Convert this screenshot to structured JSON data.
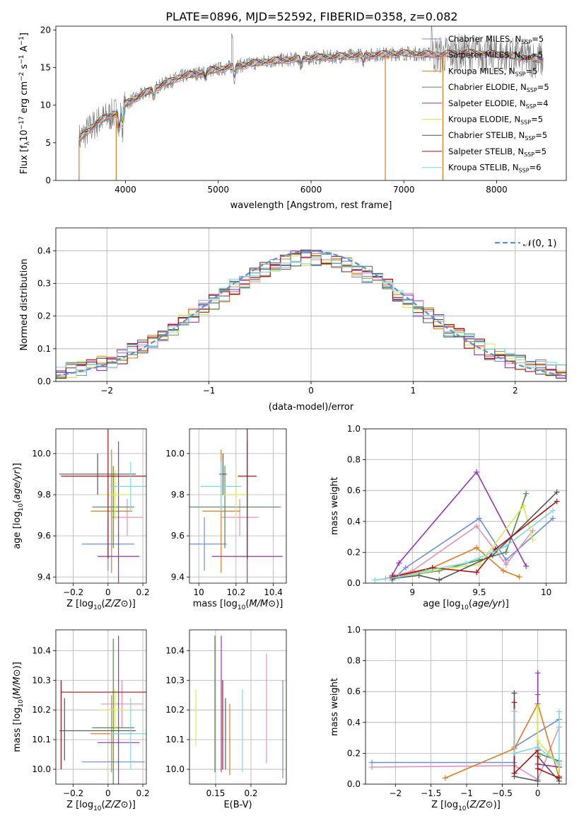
{
  "figure_title": "PLATE=0896, MJD=52592, FIBERID=0358, z=0.082",
  "colors": {
    "Chabrier MILES": "#6a8fd8",
    "Salpeter MILES": "#e98fb8",
    "Kroupa MILES": "#e07b20",
    "Chabrier ELODIE": "#4f8a4f",
    "Salpeter ELODIE": "#9933b3",
    "Kroupa ELODIE": "#d8ea50",
    "Chabrier STELIB": "#555555",
    "Salpeter STELIB": "#aa1111",
    "Kroupa STELIB": "#7fd8e0",
    "gaussian": "#5b8fd9",
    "data_spectrum": "#777777"
  },
  "chart_data": [
    {
      "id": "spectrum",
      "type": "line",
      "title": "PLATE=0896, MJD=52592, FIBERID=0358, z=0.082",
      "xlabel": "wavelength [Angstrom, rest frame]",
      "ylabel": "Flux [f_λ10^-17 erg cm^-2 s^-1 A^-1]",
      "xlim": [
        3250,
        8750
      ],
      "ylim": [
        0,
        20.5
      ],
      "xticks": [
        4000,
        5000,
        6000,
        7000,
        8000
      ],
      "yticks": [
        0,
        5,
        10,
        15,
        20
      ],
      "grid": false,
      "legend_position": "top-right",
      "legend": [
        {
          "label": "Chabrier MILES, N",
          "sub": "SSP",
          "tail": "=5"
        },
        {
          "label": "Salpeter MILES, N",
          "sub": "SSP",
          "tail": "=5"
        },
        {
          "label": "Kroupa MILES, N",
          "sub": "SSP",
          "tail": "=5"
        },
        {
          "label": "Chabrier ELODIE, N",
          "sub": "SSP",
          "tail": "=5"
        },
        {
          "label": "Salpeter ELODIE, N",
          "sub": "SSP",
          "tail": "=4"
        },
        {
          "label": "Kroupa ELODIE, N",
          "sub": "SSP",
          "tail": "=5"
        },
        {
          "label": "Chabrier STELIB, N",
          "sub": "SSP",
          "tail": "=5"
        },
        {
          "label": "Salpeter STELIB, N",
          "sub": "SSP",
          "tail": "=5"
        },
        {
          "label": "Kroupa STELIB, N",
          "sub": "SSP",
          "tail": "=6"
        }
      ],
      "continuum": {
        "x": [
          3500,
          3700,
          3900,
          4000,
          4300,
          4600,
          5000,
          5500,
          6000,
          6500,
          7000,
          7400,
          7600,
          8000,
          8500
        ],
        "y": [
          5.5,
          7.8,
          9.0,
          10.2,
          12.2,
          13.8,
          14.8,
          15.8,
          16.3,
          16.6,
          16.9,
          16.7,
          17.0,
          16.8,
          16.0
        ]
      },
      "features": [
        {
          "x": 3934,
          "depth": 3.0
        },
        {
          "x": 3969,
          "depth": 2.8
        },
        {
          "x": 4305,
          "depth": 1.5
        },
        {
          "x": 4861,
          "depth": 1.0
        },
        {
          "x": 5175,
          "depth": 1.5
        },
        {
          "x": 5893,
          "depth": 1.2
        },
        {
          "x": 6563,
          "depth": 0.8
        }
      ],
      "drops": [
        {
          "x": 3500,
          "series": "Kroupa MILES"
        },
        {
          "x": 3900,
          "series": "Kroupa MILES"
        },
        {
          "x": 6800,
          "series": "Kroupa MILES"
        },
        {
          "x": 7420,
          "series": "Kroupa MILES"
        }
      ]
    },
    {
      "id": "residuals",
      "type": "line",
      "xlabel": "(data-model)/error",
      "ylabel": "Normed distribution",
      "xlim": [
        -2.5,
        2.5
      ],
      "ylim": [
        0,
        0.47
      ],
      "xticks": [
        -2,
        -1,
        0,
        1,
        2
      ],
      "yticks": [
        0.0,
        0.1,
        0.2,
        0.3,
        0.4
      ],
      "grid": true,
      "bin_width": 0.1,
      "gaussian_label": "𝒩(0, 1)",
      "legend_position": "top-right"
    },
    {
      "id": "age_vs_Z",
      "type": "scatter",
      "xlabel": "Z [log10(Z/Z⊙)]",
      "ylabel": "age [log10(age/yr)]",
      "xlim": [
        -0.3,
        0.22
      ],
      "ylim": [
        9.37,
        10.12
      ],
      "xticks": [
        -0.2,
        0.0,
        0.2
      ],
      "yticks": [
        9.4,
        9.6,
        9.8,
        10.0
      ],
      "grid": true,
      "points": [
        {
          "series": "Chabrier MILES",
          "x": 0.0,
          "xerr": 0.15,
          "y": 9.56,
          "yerr": 0.13
        },
        {
          "series": "Salpeter MILES",
          "x": 0.11,
          "xerr": 0.09,
          "y": 9.69,
          "yerr": 0.09
        },
        {
          "series": "Kroupa MILES",
          "x": 0.02,
          "xerr": 0.12,
          "y": 9.72,
          "yerr": 0.3
        },
        {
          "series": "Chabrier ELODIE",
          "x": 0.03,
          "xerr": 0.12,
          "y": 9.74,
          "yerr": 0.2
        },
        {
          "series": "Salpeter ELODIE",
          "x": 0.06,
          "xerr": 0.12,
          "y": 9.5,
          "yerr": 0.56
        },
        {
          "series": "Kroupa ELODIE",
          "x": 0.04,
          "xerr": 0.08,
          "y": 9.8,
          "yerr": 0.12
        },
        {
          "series": "Chabrier STELIB",
          "x": -0.06,
          "xerr": 0.22,
          "y": 9.9,
          "yerr": 0.1
        },
        {
          "series": "Salpeter STELIB",
          "x": 0.0,
          "xerr": 0.27,
          "y": 9.89,
          "yerr": 0.4
        },
        {
          "series": "Kroupa STELIB",
          "x": 0.13,
          "xerr": 0.12,
          "y": 9.84,
          "yerr": 0.12
        }
      ]
    },
    {
      "id": "age_vs_mass",
      "type": "scatter",
      "xlabel": "mass [log10(M/M⊙)]",
      "ylabel": "",
      "xlim": [
        9.95,
        10.47
      ],
      "ylim": [
        9.37,
        10.12
      ],
      "xticks": [
        10.0,
        10.2,
        10.4
      ],
      "yticks": [
        9.4,
        9.6,
        9.8,
        10.0
      ],
      "grid": true,
      "points": [
        {
          "series": "Chabrier MILES",
          "x": 10.03,
          "xerr": 0.12,
          "y": 9.56,
          "yerr": 0.13
        },
        {
          "series": "Salpeter MILES",
          "x": 10.22,
          "xerr": 0.1,
          "y": 9.69,
          "yerr": 0.09
        },
        {
          "series": "Kroupa MILES",
          "x": 10.12,
          "xerr": 0.1,
          "y": 9.72,
          "yerr": 0.3
        },
        {
          "series": "Chabrier ELODIE",
          "x": 10.14,
          "xerr": 0.3,
          "y": 9.74,
          "yerr": 0.2
        },
        {
          "series": "Salpeter ELODIE",
          "x": 10.26,
          "xerr": 0.19,
          "y": 9.5,
          "yerr": 0.56
        },
        {
          "series": "Kroupa ELODIE",
          "x": 10.2,
          "xerr": 0.07,
          "y": 9.8,
          "yerr": 0.12
        },
        {
          "series": "Chabrier STELIB",
          "x": 10.13,
          "xerr": 0.02,
          "y": 9.9,
          "yerr": 0.1
        },
        {
          "series": "Salpeter STELIB",
          "x": 10.26,
          "xerr": 0.05,
          "y": 9.89,
          "yerr": 0.4
        },
        {
          "series": "Kroupa STELIB",
          "x": 10.12,
          "xerr": 0.11,
          "y": 9.84,
          "yerr": 0.12
        }
      ]
    },
    {
      "id": "mass_weight_vs_age",
      "type": "line",
      "xlabel": "age [log10(age/yr)]",
      "ylabel": "mass weight",
      "xlim": [
        8.65,
        10.15
      ],
      "ylim": [
        0,
        1.0
      ],
      "xticks": [
        9.0,
        9.5,
        10.0
      ],
      "yticks": [
        0.0,
        0.2,
        0.4,
        0.6,
        0.8,
        1.0
      ],
      "grid": true,
      "series": [
        {
          "name": "Chabrier MILES",
          "x": [
            8.85,
            8.95,
            9.5,
            9.7,
            10.05
          ],
          "y": [
            0.02,
            0.1,
            0.42,
            0.15,
            0.42
          ]
        },
        {
          "name": "Salpeter MILES",
          "x": [
            8.8,
            9.0,
            9.48,
            9.7,
            9.9
          ],
          "y": [
            0.03,
            0.08,
            0.37,
            0.12,
            0.34
          ]
        },
        {
          "name": "Kroupa MILES",
          "x": [
            8.85,
            9.15,
            9.48,
            9.68,
            9.8
          ],
          "y": [
            0.03,
            0.1,
            0.23,
            0.08,
            0.04
          ]
        },
        {
          "name": "Chabrier ELODIE",
          "x": [
            8.87,
            9.2,
            9.5,
            9.7,
            9.85
          ],
          "y": [
            0.04,
            0.08,
            0.15,
            0.2,
            0.58
          ]
        },
        {
          "name": "Salpeter ELODIE",
          "x": [
            8.85,
            8.9,
            9.48,
            9.85
          ],
          "y": [
            0.05,
            0.13,
            0.72,
            0.11
          ]
        },
        {
          "name": "Kroupa ELODIE",
          "x": [
            8.88,
            9.3,
            9.5,
            9.83,
            9.9
          ],
          "y": [
            0.04,
            0.1,
            0.12,
            0.5,
            0.28
          ]
        },
        {
          "name": "Chabrier STELIB",
          "x": [
            8.85,
            9.05,
            9.2,
            9.6,
            10.08
          ],
          "y": [
            0.03,
            0.05,
            0.02,
            0.18,
            0.59
          ]
        },
        {
          "name": "Salpeter STELIB",
          "x": [
            8.85,
            9.15,
            9.48,
            9.62,
            10.08
          ],
          "y": [
            0.04,
            0.1,
            0.07,
            0.22,
            0.53
          ]
        },
        {
          "name": "Kroupa STELIB",
          "x": [
            8.72,
            8.9,
            9.1,
            9.4,
            9.6,
            9.7,
            10.05
          ],
          "y": [
            0.02,
            0.04,
            0.08,
            0.13,
            0.2,
            0.24,
            0.47
          ]
        }
      ]
    },
    {
      "id": "mass_vs_Z",
      "type": "scatter",
      "xlabel": "Z [log10(Z/Z⊙)]",
      "ylabel": "mass [log10(M/M⊙)]",
      "xlim": [
        -0.3,
        0.22
      ],
      "ylim": [
        9.95,
        10.47
      ],
      "xticks": [
        -0.2,
        0.0,
        0.2
      ],
      "yticks": [
        10.0,
        10.1,
        10.2,
        10.3,
        10.4
      ],
      "grid": true,
      "points": [
        {
          "series": "Chabrier MILES",
          "x": 0.03,
          "xerr": 0.18,
          "y": 10.025,
          "yerr": 0.0
        },
        {
          "series": "Salpeter MILES",
          "x": 0.08,
          "xerr": 0.12,
          "y": 10.22,
          "yerr": 0.08
        },
        {
          "series": "Kroupa MILES",
          "x": 0.02,
          "xerr": 0.12,
          "y": 10.12,
          "yerr": 0.13
        },
        {
          "series": "Chabrier ELODIE",
          "x": 0.03,
          "xerr": 0.12,
          "y": 10.14,
          "yerr": 0.3
        },
        {
          "series": "Salpeter ELODIE",
          "x": 0.06,
          "xerr": 0.12,
          "y": 10.09,
          "yerr": 0.36
        },
        {
          "series": "Kroupa ELODIE",
          "x": 0.04,
          "xerr": 0.09,
          "y": 10.2,
          "yerr": 0.07
        },
        {
          "series": "Chabrier STELIB",
          "x": -0.06,
          "xerr": 0.22,
          "y": 10.13,
          "yerr": 0.0
        },
        {
          "series": "Salpeter STELIB",
          "x": -0.02,
          "xerr": 0.25,
          "y": 10.26,
          "yerr": 0.0
        },
        {
          "series": "Kroupa STELIB",
          "x": 0.13,
          "xerr": 0.12,
          "y": 10.12,
          "yerr": 0.12
        }
      ],
      "vbars": [
        {
          "series": "Salpeter STELIB",
          "x": -0.27,
          "y0": 10.0,
          "y1": 10.3
        },
        {
          "series": "Chabrier STELIB",
          "x": -0.25,
          "y0": 10.03,
          "y1": 10.24
        }
      ]
    },
    {
      "id": "mass_vs_ebv",
      "type": "scatter",
      "xlabel": "E(B-V)",
      "ylabel": "",
      "xlim": [
        0.113,
        0.25
      ],
      "ylim": [
        9.95,
        10.47
      ],
      "xticks": [
        0.15,
        0.2
      ],
      "yticks": [
        10.0,
        10.1,
        10.2,
        10.3,
        10.4
      ],
      "grid": true,
      "points": [
        {
          "series": "Kroupa ELODIE",
          "x": 0.122,
          "y0": 10.08,
          "y1": 10.27
        },
        {
          "series": "Chabrier ELODIE",
          "x": 0.149,
          "y0": 9.99,
          "y1": 10.45
        },
        {
          "series": "Salpeter ELODIE",
          "x": 0.158,
          "y0": 9.99,
          "y1": 10.45
        },
        {
          "series": "Salpeter STELIB",
          "x": 0.16,
          "y0": 10.0,
          "y1": 10.3
        },
        {
          "series": "Chabrier STELIB",
          "x": 0.164,
          "y0": 10.0,
          "y1": 10.24
        },
        {
          "series": "Kroupa MILES",
          "x": 0.17,
          "y0": 9.98,
          "y1": 10.22
        },
        {
          "series": "Kroupa STELIB",
          "x": 0.188,
          "y0": 9.99,
          "y1": 10.27
        },
        {
          "series": "Salpeter MILES",
          "x": 0.222,
          "y0": 10.02,
          "y1": 10.39
        },
        {
          "series": "Chabrier MILES",
          "x": 0.245,
          "y0": 9.97,
          "y1": 10.3
        }
      ]
    },
    {
      "id": "mass_weight_vs_Z",
      "type": "line",
      "xlabel": "Z [log10(Z/Z⊙)]",
      "ylabel": "mass weight",
      "xlim": [
        -2.42,
        0.4
      ],
      "ylim": [
        0,
        1.0
      ],
      "xticks": [
        -2.0,
        -1.5,
        -1.0,
        -0.5,
        0.0
      ],
      "yticks": [
        0.0,
        0.2,
        0.4,
        0.6,
        0.8,
        1.0
      ],
      "grid": true,
      "series": [
        {
          "name": "Chabrier MILES",
          "x": [
            -2.33,
            -0.33,
            -0.33,
            0.3
          ],
          "y": [
            0.14,
            0.14,
            0.24,
            0.42
          ]
        },
        {
          "name": "Salpeter MILES",
          "x": [
            -2.33,
            -0.33,
            0.0,
            0.3
          ],
          "y": [
            0.11,
            0.12,
            0.03,
            0.37
          ]
        },
        {
          "name": "Kroupa MILES",
          "x": [
            -1.3,
            -0.33,
            0.0,
            0.3
          ],
          "y": [
            0.04,
            0.23,
            0.52,
            0.04
          ]
        },
        {
          "name": "Chabrier ELODIE",
          "x": [
            0.0,
            0.0,
            0.3,
            0.3
          ],
          "y": [
            0.58,
            0.2,
            0.15,
            0.04
          ]
        },
        {
          "name": "Salpeter ELODIE",
          "x": [
            0.0,
            0.0,
            0.3,
            0.3
          ],
          "y": [
            0.72,
            0.13,
            0.11,
            0.05
          ]
        },
        {
          "name": "Kroupa ELODIE",
          "x": [
            0.0,
            0.0,
            0.3,
            0.3
          ],
          "y": [
            0.5,
            0.28,
            0.12,
            0.04
          ]
        },
        {
          "name": "Chabrier STELIB",
          "x": [
            -0.33,
            -0.33,
            0.0,
            0.0,
            0.3
          ],
          "y": [
            0.59,
            0.05,
            0.02,
            0.18,
            0.02
          ]
        },
        {
          "name": "Salpeter STELIB",
          "x": [
            -0.33,
            -0.33,
            0.0,
            0.0,
            0.3
          ],
          "y": [
            0.53,
            0.07,
            0.22,
            0.1,
            0.04
          ]
        },
        {
          "name": "Kroupa STELIB",
          "x": [
            -0.33,
            -0.33,
            0.0,
            0.3,
            0.3
          ],
          "y": [
            0.47,
            0.2,
            0.24,
            0.13,
            0.47
          ]
        }
      ]
    }
  ]
}
